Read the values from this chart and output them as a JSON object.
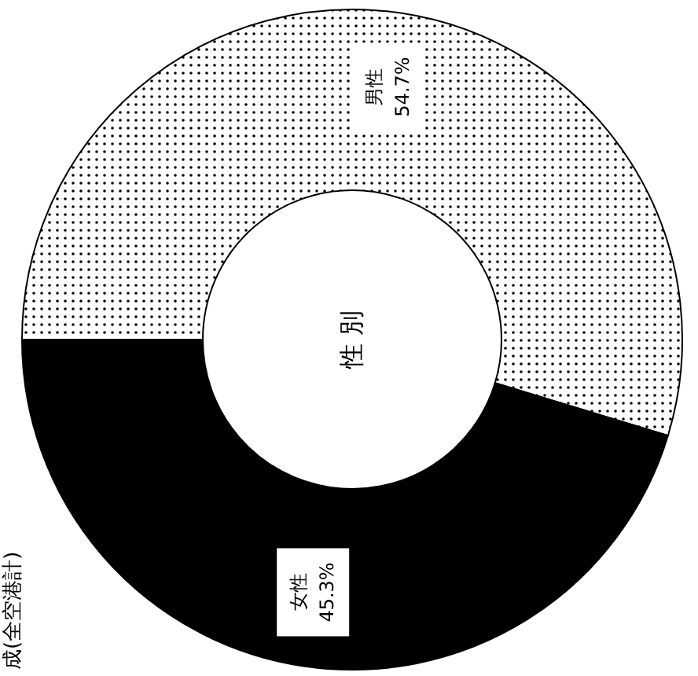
{
  "chart_data": {
    "type": "donut",
    "title": "性 別",
    "categories": [
      "男性",
      "女性"
    ],
    "values": [
      54.7,
      45.3
    ],
    "colors": [
      "#ffffff",
      "#000000"
    ],
    "value_labels": [
      "54.7%",
      "45.3%"
    ],
    "annotations": [
      "成(全空港計)"
    ]
  }
}
